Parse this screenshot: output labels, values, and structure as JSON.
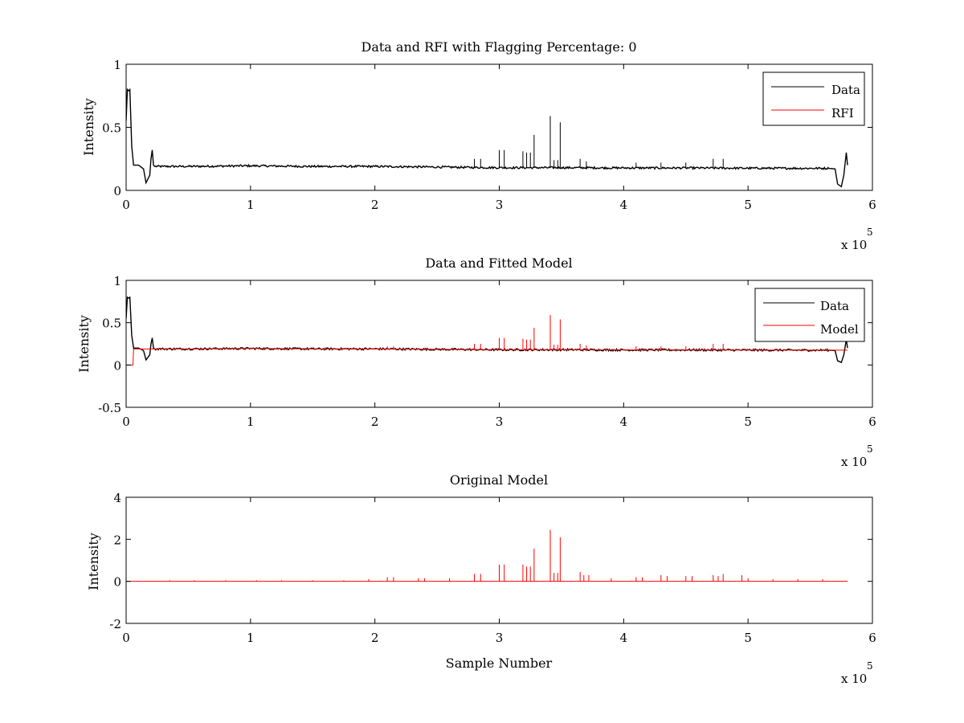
{
  "figure": {
    "background": "#ffffff",
    "colors": {
      "data": "#000000",
      "rfi": "#ff0000",
      "model": "#ff0000",
      "axes": "#000000"
    }
  },
  "chart_data": [
    {
      "type": "line",
      "title": "Data and RFI with Flagging Percentage: 0",
      "xlabel": "",
      "ylabel": "Intensity",
      "xlim": [
        0,
        6
      ],
      "ylim": [
        0,
        1
      ],
      "xticks": [
        "0",
        "1",
        "2",
        "3",
        "4",
        "5",
        "6"
      ],
      "yticks": [
        "0",
        "0.5",
        "1"
      ],
      "x_multiplier": {
        "base": "x 10",
        "exponent": "5"
      },
      "grid": false,
      "legend": {
        "position": "top-right",
        "entries": [
          "Data",
          "RFI"
        ]
      },
      "series": [
        {
          "name": "Data",
          "color": "#000000",
          "x": [
            0,
            0.01,
            0.02,
            0.03,
            0.045,
            0.06,
            0.1,
            0.14,
            0.16,
            0.19,
            0.2,
            0.21,
            0.22,
            0.23,
            0.3,
            0.5,
            1.0,
            1.5,
            2.0,
            2.5,
            3.0,
            3.5,
            4.0,
            4.5,
            5.0,
            5.5,
            5.65,
            5.7,
            5.72,
            5.75,
            5.77,
            5.79,
            5.8
          ],
          "y": [
            0.55,
            0.8,
            0.79,
            0.8,
            0.35,
            0.2,
            0.2,
            0.17,
            0.06,
            0.12,
            0.25,
            0.32,
            0.2,
            0.19,
            0.19,
            0.19,
            0.195,
            0.19,
            0.19,
            0.185,
            0.18,
            0.18,
            0.178,
            0.178,
            0.176,
            0.175,
            0.175,
            0.17,
            0.05,
            0.03,
            0.12,
            0.3,
            0.2
          ]
        },
        {
          "name": "RFI",
          "color": "#ff0000",
          "x": [
            0,
            5.8
          ],
          "y": [
            0,
            0
          ]
        }
      ],
      "spikes": {
        "color": "#000000",
        "baseline": 0.18,
        "x": [
          2.8,
          2.85,
          3.0,
          3.04,
          3.19,
          3.22,
          3.25,
          3.28,
          3.41,
          3.44,
          3.47,
          3.49,
          3.65,
          3.7,
          4.1,
          4.3,
          4.5,
          4.72,
          4.8
        ],
        "y": [
          0.25,
          0.25,
          0.32,
          0.32,
          0.31,
          0.3,
          0.3,
          0.44,
          0.59,
          0.24,
          0.24,
          0.54,
          0.25,
          0.23,
          0.22,
          0.22,
          0.22,
          0.25,
          0.25
        ]
      }
    },
    {
      "type": "line",
      "title": "Data and Fitted Model",
      "xlabel": "",
      "ylabel": "Intensity",
      "xlim": [
        0,
        6
      ],
      "ylim": [
        -0.5,
        1
      ],
      "xticks": [
        "0",
        "1",
        "2",
        "3",
        "4",
        "5",
        "6"
      ],
      "yticks": [
        "-0.5",
        "0",
        "0.5",
        "1"
      ],
      "x_multiplier": {
        "base": "x 10",
        "exponent": "5"
      },
      "grid": false,
      "legend": {
        "position": "top-right",
        "entries": [
          "Data",
          "Model"
        ]
      },
      "series": [
        {
          "name": "Data",
          "color": "#000000",
          "x": [
            0,
            0.01,
            0.02,
            0.03,
            0.045,
            0.06,
            0.1,
            0.14,
            0.16,
            0.19,
            0.2,
            0.21,
            0.22,
            0.23,
            0.3,
            0.5,
            1.0,
            1.5,
            2.0,
            2.5,
            3.0,
            3.5,
            4.0,
            4.5,
            5.0,
            5.5,
            5.65,
            5.7,
            5.72,
            5.75,
            5.77,
            5.79,
            5.8
          ],
          "y": [
            0.55,
            0.8,
            0.79,
            0.8,
            0.35,
            0.2,
            0.2,
            0.17,
            0.06,
            0.12,
            0.25,
            0.32,
            0.2,
            0.19,
            0.19,
            0.19,
            0.195,
            0.19,
            0.19,
            0.185,
            0.18,
            0.18,
            0.178,
            0.178,
            0.176,
            0.175,
            0.175,
            0.17,
            0.05,
            0.03,
            0.12,
            0.3,
            0.2
          ]
        },
        {
          "name": "Model",
          "color": "#ff0000",
          "x": [
            0,
            0.055,
            0.06,
            0.08,
            0.1,
            0.5,
            1.0,
            1.5,
            2.0,
            2.5,
            3.0,
            3.5,
            4.0,
            4.5,
            5.0,
            5.5,
            5.8
          ],
          "y": [
            0,
            0,
            0.19,
            0.19,
            0.19,
            0.19,
            0.195,
            0.19,
            0.19,
            0.185,
            0.18,
            0.18,
            0.178,
            0.178,
            0.176,
            0.175,
            0.175
          ]
        }
      ],
      "spikes": {
        "color": "#ff0000",
        "baseline": 0.18,
        "x": [
          2.1,
          2.15,
          2.8,
          2.85,
          3.0,
          3.04,
          3.19,
          3.22,
          3.25,
          3.28,
          3.41,
          3.44,
          3.47,
          3.49,
          3.65,
          3.7,
          4.1,
          4.3,
          4.5,
          4.72,
          4.8
        ],
        "y": [
          0.22,
          0.22,
          0.25,
          0.25,
          0.32,
          0.32,
          0.31,
          0.3,
          0.3,
          0.44,
          0.59,
          0.24,
          0.24,
          0.54,
          0.25,
          0.23,
          0.22,
          0.22,
          0.22,
          0.25,
          0.25
        ]
      }
    },
    {
      "type": "line",
      "title": "Original Model",
      "xlabel": "Sample Number",
      "ylabel": "Intensity",
      "xlim": [
        0,
        6
      ],
      "ylim": [
        -2,
        4
      ],
      "xticks": [
        "0",
        "1",
        "2",
        "3",
        "4",
        "5",
        "6"
      ],
      "yticks": [
        "-2",
        "0",
        "2",
        "4"
      ],
      "x_multiplier": {
        "base": "x 10",
        "exponent": "5"
      },
      "grid": false,
      "legend": null,
      "series": [
        {
          "color": "#ff0000",
          "x": [
            0,
            5.8
          ],
          "y": [
            0,
            0
          ]
        }
      ],
      "spikes": {
        "color": "#ff0000",
        "baseline": 0,
        "x": [
          0.35,
          0.55,
          0.8,
          1.05,
          1.25,
          1.5,
          1.75,
          1.95,
          2.1,
          2.15,
          2.35,
          2.4,
          2.6,
          2.8,
          2.85,
          3.0,
          3.04,
          3.19,
          3.22,
          3.25,
          3.28,
          3.41,
          3.44,
          3.47,
          3.49,
          3.65,
          3.68,
          3.72,
          3.9,
          4.1,
          4.15,
          4.3,
          4.35,
          4.5,
          4.55,
          4.72,
          4.76,
          4.8,
          4.95,
          5.0,
          5.2,
          5.4,
          5.6
        ],
        "y": [
          0.05,
          0.05,
          0.05,
          0.05,
          0.05,
          0.05,
          0.05,
          0.1,
          0.2,
          0.2,
          0.15,
          0.15,
          0.15,
          0.35,
          0.35,
          0.8,
          0.8,
          0.8,
          0.7,
          0.7,
          1.55,
          2.45,
          0.4,
          0.4,
          2.1,
          0.45,
          0.3,
          0.3,
          0.15,
          0.2,
          0.2,
          0.3,
          0.25,
          0.25,
          0.25,
          0.3,
          0.25,
          0.35,
          0.3,
          0.15,
          0.1,
          0.1,
          0.1
        ]
      }
    }
  ]
}
